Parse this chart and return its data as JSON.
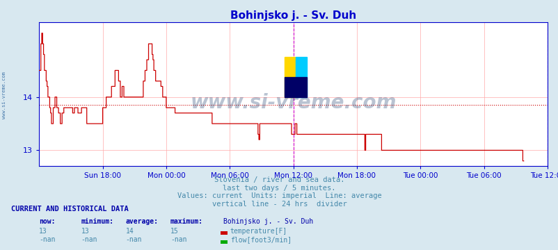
{
  "title": "Bohinjsko j. - Sv. Duh",
  "bg_color": "#d8e8f0",
  "plot_bg_color": "#ffffff",
  "grid_color": "#ffaaaa",
  "axis_color": "#0000cc",
  "title_color": "#0000cc",
  "ylabel_values": [
    13,
    14
  ],
  "ylim": [
    12.7,
    15.4
  ],
  "xlim": [
    0,
    576
  ],
  "xtick_positions": [
    72,
    144,
    216,
    288,
    360,
    432,
    504,
    576
  ],
  "xtick_labels": [
    "Sun 18:00",
    "Mon 00:00",
    "Mon 06:00",
    "Mon 12:00",
    "Mon 18:00",
    "Tue 00:00",
    "Tue 06:00",
    "Tue 12:00"
  ],
  "avg_line_y": 13.85,
  "avg_line_color": "#cc0000",
  "vline_x": 288,
  "vline_color": "#cc00cc",
  "vline_right_x": 576,
  "line_color": "#cc0000",
  "watermark_text": "www.si-vreme.com",
  "watermark_color": "#1a3a6a",
  "footer_lines": [
    "Slovenia / river and sea data.",
    "last two days / 5 minutes.",
    "Values: current  Units: imperial  Line: average",
    "vertical line - 24 hrs  divider"
  ],
  "footer_color": "#4488aa",
  "bottom_title": "CURRENT AND HISTORICAL DATA",
  "bottom_title_color": "#0000aa",
  "bottom_headers": [
    "now:",
    "minimum:",
    "average:",
    "maximum:",
    "Bohinjsko j. - Sv. Duh"
  ],
  "bottom_row1": [
    "13",
    "13",
    "14",
    "15"
  ],
  "bottom_row2": [
    "-nan",
    "-nan",
    "-nan",
    "-nan"
  ],
  "legend_temp_color": "#cc0000",
  "legend_flow_color": "#00aa00",
  "legend_temp_label": "temperature[F]",
  "legend_flow_label": "flow[foot3/min]",
  "temp_data": [
    14.5,
    14.5,
    15.0,
    15.2,
    15.0,
    14.8,
    14.5,
    14.5,
    14.3,
    14.2,
    14.0,
    14.0,
    13.8,
    13.7,
    13.5,
    13.5,
    13.8,
    13.8,
    14.0,
    14.0,
    13.8,
    13.8,
    13.7,
    13.7,
    13.5,
    13.5,
    13.7,
    13.7,
    13.8,
    13.8,
    13.8,
    13.8,
    13.8,
    13.8,
    13.8,
    13.8,
    13.8,
    13.8,
    13.7,
    13.7,
    13.8,
    13.8,
    13.8,
    13.8,
    13.7,
    13.7,
    13.7,
    13.7,
    13.8,
    13.8,
    13.8,
    13.8,
    13.8,
    13.8,
    13.5,
    13.5,
    13.5,
    13.5,
    13.5,
    13.5,
    13.5,
    13.5,
    13.5,
    13.5,
    13.5,
    13.5,
    13.5,
    13.5,
    13.5,
    13.5,
    13.5,
    13.5,
    13.8,
    13.8,
    13.8,
    13.8,
    14.0,
    14.0,
    14.0,
    14.0,
    14.0,
    14.0,
    14.2,
    14.2,
    14.2,
    14.2,
    14.5,
    14.5,
    14.5,
    14.5,
    14.3,
    14.3,
    14.0,
    14.0,
    14.2,
    14.2,
    14.0,
    14.0,
    14.0,
    14.0,
    14.0,
    14.0,
    14.0,
    14.0,
    14.0,
    14.0,
    14.0,
    14.0,
    14.0,
    14.0,
    14.0,
    14.0,
    14.0,
    14.0,
    14.0,
    14.0,
    14.0,
    14.0,
    14.3,
    14.3,
    14.5,
    14.5,
    14.7,
    14.7,
    15.0,
    15.0,
    15.0,
    15.0,
    14.8,
    14.7,
    14.5,
    14.5,
    14.3,
    14.3,
    14.3,
    14.3,
    14.3,
    14.3,
    14.2,
    14.2,
    14.0,
    14.0,
    14.0,
    14.0,
    13.8,
    13.8,
    13.8,
    13.8,
    13.8,
    13.8,
    13.8,
    13.8,
    13.8,
    13.8,
    13.7,
    13.7,
    13.7,
    13.7,
    13.7,
    13.7,
    13.7,
    13.7,
    13.7,
    13.7,
    13.7,
    13.7,
    13.7,
    13.7,
    13.7,
    13.7,
    13.7,
    13.7,
    13.7,
    13.7,
    13.7,
    13.7,
    13.7,
    13.7,
    13.7,
    13.7,
    13.7,
    13.7,
    13.7,
    13.7,
    13.7,
    13.7,
    13.7,
    13.7,
    13.7,
    13.7,
    13.7,
    13.7,
    13.7,
    13.7,
    13.7,
    13.7,
    13.5,
    13.5,
    13.5,
    13.5,
    13.5,
    13.5,
    13.5,
    13.5,
    13.5,
    13.5,
    13.5,
    13.5,
    13.5,
    13.5,
    13.5,
    13.5,
    13.5,
    13.5,
    13.5,
    13.5,
    13.5,
    13.5,
    13.5,
    13.5,
    13.5,
    13.5,
    13.5,
    13.5,
    13.5,
    13.5,
    13.5,
    13.5,
    13.5,
    13.5,
    13.5,
    13.5,
    13.5,
    13.5,
    13.5,
    13.5,
    13.5,
    13.5,
    13.5,
    13.5,
    13.5,
    13.5,
    13.5,
    13.5,
    13.5,
    13.5,
    13.5,
    13.5,
    13.3,
    13.2,
    13.5,
    13.5,
    13.5,
    13.5,
    13.5,
    13.5,
    13.5,
    13.5,
    13.5,
    13.5,
    13.5,
    13.5,
    13.5,
    13.5,
    13.5,
    13.5,
    13.5,
    13.5,
    13.5,
    13.5,
    13.5,
    13.5,
    13.5,
    13.5,
    13.5,
    13.5,
    13.5,
    13.5,
    13.5,
    13.5,
    13.5,
    13.5,
    13.5,
    13.5,
    13.5,
    13.5,
    13.3,
    13.3,
    13.3,
    13.3,
    13.5,
    13.5,
    13.3,
    13.3,
    13.3,
    13.3,
    13.3,
    13.3,
    13.3,
    13.3,
    13.3,
    13.3,
    13.3,
    13.3,
    13.3,
    13.3,
    13.3,
    13.3,
    13.3,
    13.3,
    13.3,
    13.3,
    13.3,
    13.3,
    13.3,
    13.3,
    13.3,
    13.3,
    13.3,
    13.3,
    13.3,
    13.3,
    13.3,
    13.3,
    13.3,
    13.3,
    13.3,
    13.3,
    13.3,
    13.3,
    13.3,
    13.3,
    13.3,
    13.3,
    13.3,
    13.3,
    13.3,
    13.3,
    13.3,
    13.3,
    13.3,
    13.3,
    13.3,
    13.3,
    13.3,
    13.3,
    13.3,
    13.3,
    13.3,
    13.3,
    13.3,
    13.3,
    13.3,
    13.3,
    13.3,
    13.3,
    13.3,
    13.3,
    13.3,
    13.3,
    13.3,
    13.3,
    13.3,
    13.3,
    13.3,
    13.3,
    13.3,
    13.3,
    13.3,
    13.0,
    13.3,
    13.3,
    13.3,
    13.3,
    13.3,
    13.3,
    13.3,
    13.3,
    13.3,
    13.3,
    13.3,
    13.3,
    13.3,
    13.3,
    13.3,
    13.3,
    13.3,
    13.3,
    13.0,
    13.0,
    13.0,
    13.0,
    13.0,
    13.0,
    13.0,
    13.0,
    13.0,
    13.0,
    13.0,
    13.0,
    13.0,
    13.0,
    13.0,
    13.0,
    13.0,
    13.0,
    13.0,
    13.0,
    13.0,
    13.0,
    13.0,
    13.0,
    13.0,
    13.0,
    13.0,
    13.0,
    13.0,
    13.0,
    13.0,
    13.0,
    13.0,
    13.0,
    13.0,
    13.0,
    13.0,
    13.0,
    13.0,
    13.0,
    13.0,
    13.0,
    13.0,
    13.0,
    13.0,
    13.0,
    13.0,
    13.0,
    13.0,
    13.0,
    13.0,
    13.0,
    13.0,
    13.0,
    13.0,
    13.0,
    13.0,
    13.0,
    13.0,
    13.0,
    13.0,
    13.0,
    13.0,
    13.0,
    13.0,
    13.0,
    13.0,
    13.0,
    13.0,
    13.0,
    13.0,
    13.0,
    13.0,
    13.0,
    13.0,
    13.0,
    13.0,
    13.0,
    13.0,
    13.0,
    13.0,
    13.0,
    13.0,
    13.0,
    13.0,
    13.0,
    13.0,
    13.0,
    13.0,
    13.0,
    13.0,
    13.0,
    13.0,
    13.0,
    13.0,
    13.0,
    13.0,
    13.0,
    13.0,
    13.0,
    13.0,
    13.0,
    13.0,
    13.0,
    13.0,
    13.0,
    13.0,
    13.0,
    13.0,
    13.0,
    13.0,
    13.0,
    13.0,
    13.0,
    13.0,
    13.0,
    13.0,
    13.0,
    13.0,
    13.0,
    13.0,
    13.0,
    13.0,
    13.0,
    13.0,
    13.0,
    13.0,
    13.0,
    13.0,
    13.0,
    13.0,
    13.0,
    13.0,
    13.0,
    13.0,
    13.0,
    13.0,
    13.0,
    13.0,
    13.0,
    13.0,
    13.0,
    13.0,
    13.0,
    13.0,
    13.0,
    13.0,
    13.0,
    13.0,
    13.0,
    13.0,
    13.0,
    13.0,
    13.0,
    13.0,
    13.0,
    13.0,
    13.0,
    13.0,
    13.0,
    12.8,
    12.8
  ]
}
